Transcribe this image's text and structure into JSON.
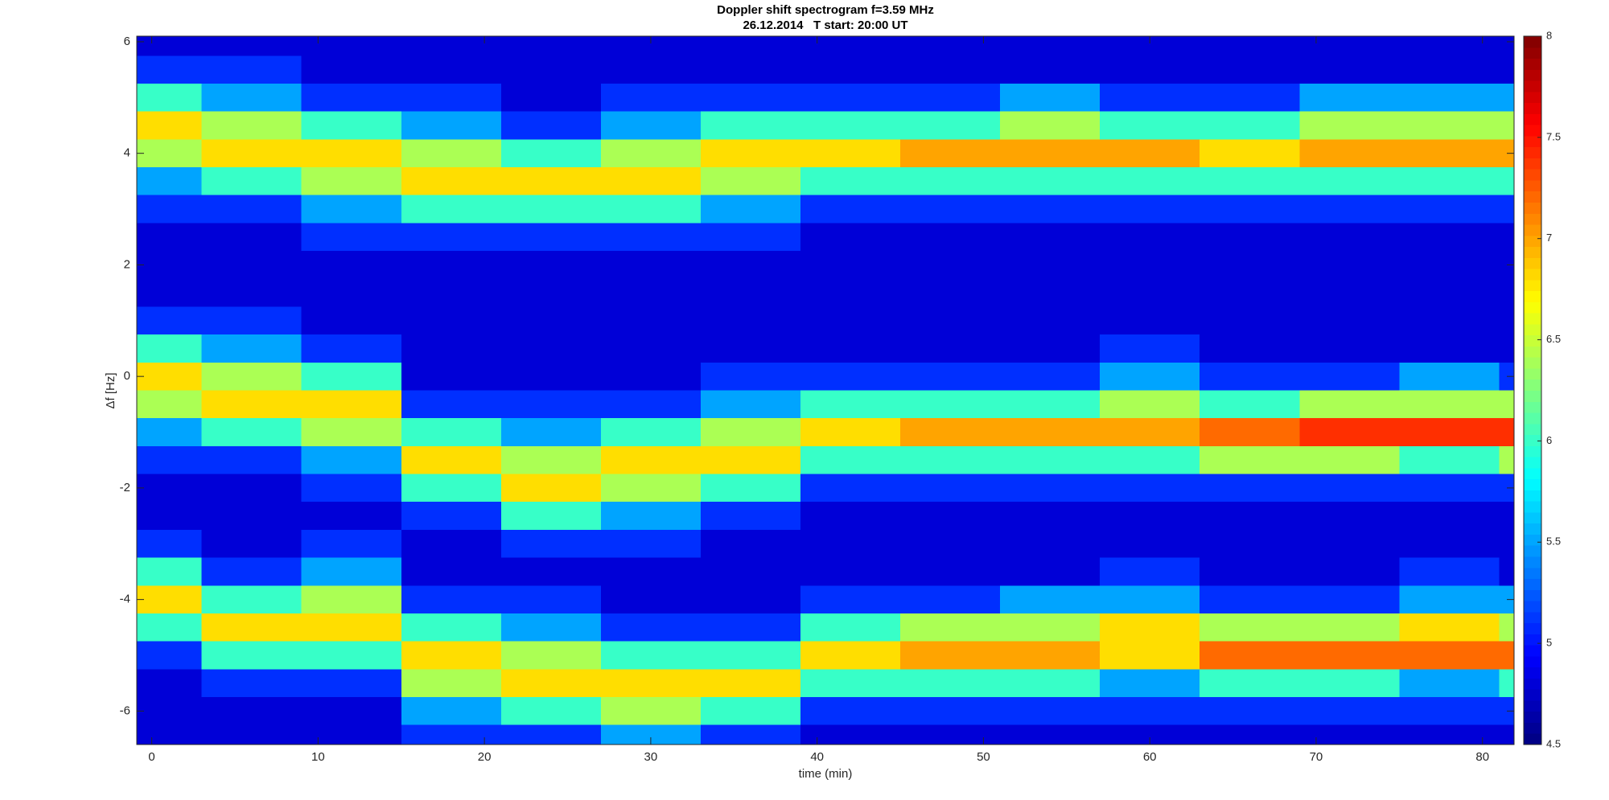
{
  "chart_data": {
    "type": "heatmap",
    "title": "Doppler shift spectrogram f=3.59 MHz",
    "subtitle": "26.12.2014   T start: 20:00 UT",
    "xlabel": "time (min)",
    "ylabel": "Δf [Hz]",
    "colormap": "jet",
    "clim": [
      4.5,
      8
    ],
    "colorbar_ticks": [
      4.5,
      5,
      5.5,
      6,
      6.5,
      7,
      7.5,
      8
    ],
    "xlim": [
      -0.9,
      81.9
    ],
    "xticks": [
      0,
      10,
      20,
      30,
      40,
      50,
      60,
      70,
      80
    ],
    "ylim": [
      -6.6,
      6.1
    ],
    "yticks": [
      -6,
      -4,
      -2,
      0,
      2,
      4,
      6
    ],
    "x": [
      0,
      6,
      12,
      18,
      24,
      30,
      36,
      42,
      48,
      54,
      60,
      66,
      72,
      78,
      84
    ],
    "y": [
      6,
      5.5,
      5,
      4.5,
      4,
      3.5,
      3,
      2.5,
      2,
      1.5,
      1,
      0.5,
      0,
      -0.5,
      -1,
      -1.5,
      -2,
      -2.5,
      -3,
      -3.5,
      -4,
      -4.5,
      -5,
      -5.5,
      -6,
      -6.5
    ],
    "z": [
      [
        4.8,
        5.1,
        6.0,
        6.8,
        6.4,
        5.5,
        5.1,
        4.8,
        4.8,
        4.8,
        5.1,
        6.0,
        6.8,
        6.4,
        5.5,
        5.1,
        4.8,
        4.8,
        5.1,
        6.0,
        6.8,
        6.0,
        5.1,
        4.8,
        4.8,
        4.8
      ],
      [
        4.8,
        5.1,
        5.5,
        6.4,
        6.8,
        6.0,
        5.1,
        4.8,
        4.8,
        4.8,
        5.1,
        5.5,
        6.4,
        6.8,
        6.0,
        5.1,
        4.8,
        4.8,
        4.8,
        5.1,
        6.0,
        6.8,
        6.0,
        5.1,
        4.8,
        4.8
      ],
      [
        4.8,
        4.8,
        5.1,
        6.0,
        6.8,
        6.4,
        5.5,
        5.1,
        4.8,
        4.8,
        4.8,
        5.1,
        6.0,
        6.8,
        6.4,
        5.5,
        5.1,
        4.8,
        5.1,
        5.5,
        6.4,
        6.8,
        6.0,
        5.1,
        4.8,
        4.8
      ],
      [
        4.8,
        4.8,
        5.1,
        5.5,
        6.4,
        6.8,
        6.0,
        5.1,
        4.8,
        4.8,
        4.8,
        4.8,
        4.8,
        5.1,
        6.0,
        6.8,
        6.0,
        5.1,
        4.8,
        4.8,
        5.1,
        6.0,
        6.8,
        6.4,
        5.5,
        5.1
      ],
      [
        4.8,
        4.8,
        4.8,
        5.1,
        6.0,
        6.8,
        6.0,
        5.1,
        4.8,
        4.8,
        4.8,
        4.8,
        4.8,
        5.1,
        5.5,
        6.4,
        6.8,
        6.0,
        5.1,
        4.8,
        5.1,
        5.5,
        6.4,
        6.8,
        6.0,
        5.1
      ],
      [
        4.8,
        4.8,
        5.1,
        5.5,
        6.4,
        6.8,
        6.0,
        5.1,
        4.8,
        4.8,
        4.8,
        4.8,
        4.8,
        5.1,
        6.0,
        6.8,
        6.4,
        5.5,
        5.1,
        4.8,
        4.8,
        5.1,
        6.0,
        6.8,
        6.4,
        5.5
      ],
      [
        4.8,
        4.8,
        5.1,
        6.0,
        6.8,
        6.4,
        5.5,
        5.1,
        4.8,
        4.8,
        4.8,
        4.8,
        5.1,
        5.5,
        6.4,
        6.8,
        6.0,
        5.1,
        4.8,
        4.8,
        4.8,
        5.1,
        6.0,
        6.8,
        6.0,
        5.1
      ],
      [
        4.8,
        4.8,
        5.1,
        6.0,
        6.8,
        6.0,
        5.1,
        4.8,
        4.8,
        4.8,
        4.8,
        4.8,
        5.1,
        6.0,
        6.8,
        6.0,
        5.1,
        4.8,
        4.8,
        4.8,
        5.1,
        6.0,
        6.8,
        6.0,
        5.1,
        4.8
      ],
      [
        4.8,
        4.8,
        5.1,
        6.0,
        7.0,
        6.0,
        5.1,
        4.8,
        4.8,
        4.8,
        4.8,
        4.8,
        5.1,
        6.0,
        7.0,
        6.0,
        5.1,
        4.8,
        4.8,
        4.8,
        5.1,
        6.4,
        7.0,
        6.0,
        5.1,
        4.8
      ],
      [
        4.8,
        4.8,
        5.5,
        6.4,
        7.0,
        6.0,
        5.1,
        4.8,
        4.8,
        4.8,
        4.8,
        4.8,
        5.1,
        6.0,
        7.0,
        6.0,
        5.1,
        4.8,
        4.8,
        4.8,
        5.5,
        6.4,
        7.0,
        6.0,
        5.1,
        4.8
      ],
      [
        4.8,
        4.8,
        5.1,
        6.0,
        7.0,
        6.0,
        5.1,
        4.8,
        4.8,
        4.8,
        4.8,
        5.1,
        5.5,
        6.4,
        7.0,
        6.0,
        5.1,
        4.8,
        4.8,
        5.1,
        5.5,
        6.8,
        6.8,
        5.5,
        5.1,
        4.8
      ],
      [
        4.8,
        4.8,
        5.1,
        6.0,
        6.8,
        6.0,
        5.1,
        4.8,
        4.8,
        4.8,
        4.8,
        4.8,
        5.1,
        6.0,
        7.2,
        6.4,
        5.1,
        4.8,
        4.8,
        4.8,
        5.1,
        6.4,
        7.2,
        6.0,
        5.1,
        4.8
      ],
      [
        4.8,
        4.8,
        5.5,
        6.4,
        7.0,
        6.0,
        5.1,
        4.8,
        4.8,
        4.8,
        4.8,
        4.8,
        5.1,
        6.4,
        7.4,
        6.4,
        5.1,
        4.8,
        4.8,
        4.8,
        5.1,
        6.4,
        7.2,
        6.0,
        5.1,
        4.8
      ],
      [
        4.8,
        4.8,
        5.5,
        6.4,
        7.0,
        6.0,
        5.1,
        4.8,
        4.8,
        4.8,
        4.8,
        4.8,
        5.5,
        6.4,
        7.4,
        6.0,
        5.1,
        4.8,
        4.8,
        5.1,
        5.5,
        6.8,
        7.2,
        5.5,
        5.1,
        4.8
      ],
      [
        4.8,
        4.8,
        5.5,
        6.4,
        7.0,
        6.0,
        5.1,
        4.8,
        4.8,
        4.8,
        4.8,
        4.8,
        5.1,
        6.4,
        7.4,
        6.4,
        5.1,
        4.8,
        4.8,
        4.8,
        5.5,
        6.4,
        7.2,
        6.0,
        5.1,
        4.8
      ]
    ]
  }
}
